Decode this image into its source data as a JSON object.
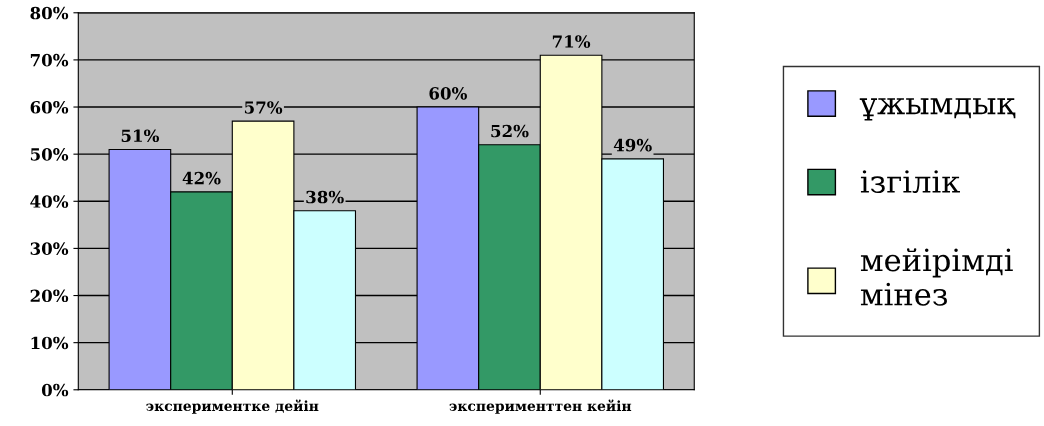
{
  "chart_data": {
    "type": "bar",
    "categories": [
      "экспериментке дейін",
      "эксперименттен кейін"
    ],
    "series": [
      {
        "name": "ұжымдық",
        "color": "#9999ff",
        "values": [
          51,
          60
        ],
        "value_labels": [
          "51%",
          "60%"
        ]
      },
      {
        "name": "ізгілік",
        "color": "#339966",
        "values": [
          42,
          52
        ],
        "value_labels": [
          "42%",
          "52%"
        ]
      },
      {
        "name": "мейірімді мінез",
        "color": "#ffffcc",
        "values": [
          57,
          71
        ],
        "value_labels": [
          "57%",
          "71%"
        ]
      },
      {
        "color": "#ccffff",
        "values": [
          38,
          49
        ],
        "value_labels": [
          "38%",
          "49%"
        ]
      }
    ],
    "ylim": [
      0,
      80
    ],
    "yticks": [
      {
        "value": 0,
        "label": "0%"
      },
      {
        "value": 10,
        "label": "10%"
      },
      {
        "value": 20,
        "label": "20%"
      },
      {
        "value": 30,
        "label": "30%"
      },
      {
        "value": 40,
        "label": "40%"
      },
      {
        "value": 50,
        "label": "50%"
      },
      {
        "value": 60,
        "label": "60%"
      },
      {
        "value": 70,
        "label": "70%"
      },
      {
        "value": 80,
        "label": "80%"
      }
    ],
    "grid": "y",
    "legend": "right"
  }
}
